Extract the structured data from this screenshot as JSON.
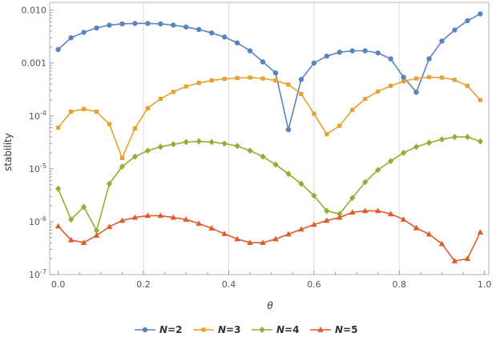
{
  "chart_data": {
    "type": "line",
    "xlabel": "θ",
    "ylabel": "stability",
    "xlim": [
      -0.02,
      1.01
    ],
    "ylim": [
      1e-07,
      0.014
    ],
    "yscale": "log",
    "x_ticks": [
      "0.0",
      "0.2",
      "0.4",
      "0.6",
      "0.8",
      "1.0"
    ],
    "y_ticks": [
      {
        "value": 0.01,
        "mant": "0.010",
        "exp": ""
      },
      {
        "value": 0.001,
        "mant": "0.001",
        "exp": ""
      },
      {
        "value": 0.0001,
        "mant": "10",
        "exp": "-4"
      },
      {
        "value": 1e-05,
        "mant": "10",
        "exp": "-5"
      },
      {
        "value": 1e-06,
        "mant": "10",
        "exp": "-6"
      },
      {
        "value": 1e-07,
        "mant": "10",
        "exp": "-7"
      }
    ],
    "vertical_gridlines": [
      0.2,
      0.4,
      0.6,
      0.8
    ],
    "legend_position": "bottom",
    "x": [
      0.0,
      0.03,
      0.06,
      0.09,
      0.12,
      0.15,
      0.18,
      0.21,
      0.24,
      0.27,
      0.3,
      0.33,
      0.36,
      0.39,
      0.42,
      0.45,
      0.48,
      0.51,
      0.54,
      0.57,
      0.6,
      0.63,
      0.66,
      0.69,
      0.72,
      0.75,
      0.78,
      0.81,
      0.84,
      0.87,
      0.9,
      0.93,
      0.96,
      0.99
    ],
    "series": [
      {
        "name": "N=2",
        "legend_symbol": "N",
        "legend_value": "=2",
        "color": "#5A84BE",
        "marker": "circle",
        "values": [
          0.0018,
          0.003,
          0.0038,
          0.0046,
          0.0052,
          0.0055,
          0.0056,
          0.0056,
          0.0055,
          0.0052,
          0.0048,
          0.0043,
          0.0037,
          0.0031,
          0.0024,
          0.0017,
          0.00105,
          0.00065,
          5.5e-05,
          0.00049,
          0.001,
          0.00135,
          0.0016,
          0.0017,
          0.0017,
          0.00155,
          0.0012,
          0.00054,
          0.00028,
          0.0012,
          0.0026,
          0.0042,
          0.0063,
          0.0085
        ]
      },
      {
        "name": "N=3",
        "legend_symbol": "N",
        "legend_value": "=3",
        "color": "#E8A02E",
        "marker": "square",
        "values": [
          6e-05,
          0.00012,
          0.000135,
          0.00012,
          7e-05,
          1.6e-05,
          5.8e-05,
          0.00014,
          0.00021,
          0.000285,
          0.00036,
          0.00042,
          0.00047,
          0.0005,
          0.00052,
          0.00053,
          0.00051,
          0.00047,
          0.00039,
          0.00026,
          0.00011,
          4.5e-05,
          6.5e-05,
          0.00013,
          0.00021,
          0.00029,
          0.00037,
          0.00045,
          0.00051,
          0.00054,
          0.00053,
          0.00048,
          0.00037,
          0.0002
        ]
      },
      {
        "name": "N=4",
        "legend_symbol": "N",
        "legend_value": "=4",
        "color": "#8FB031",
        "marker": "diamond",
        "values": [
          4.2e-06,
          1.1e-06,
          1.9e-06,
          6.8e-07,
          5.2e-06,
          1.1e-05,
          1.7e-05,
          2.2e-05,
          2.6e-05,
          2.9e-05,
          3.2e-05,
          3.3e-05,
          3.2e-05,
          3e-05,
          2.7e-05,
          2.2e-05,
          1.7e-05,
          1.2e-05,
          8e-06,
          5.2e-06,
          3.1e-06,
          1.6e-06,
          1.4e-06,
          2.8e-06,
          5.6e-06,
          9.5e-06,
          1.4e-05,
          2e-05,
          2.6e-05,
          3.1e-05,
          3.6e-05,
          4e-05,
          4e-05,
          3.3e-05
        ]
      },
      {
        "name": "N=5",
        "legend_symbol": "N",
        "legend_value": "=5",
        "color": "#E05A2B",
        "marker": "triangle",
        "values": [
          8.2e-07,
          4.5e-07,
          4e-07,
          5.5e-07,
          8e-07,
          1.05e-06,
          1.2e-06,
          1.3e-06,
          1.3e-06,
          1.2e-06,
          1.1e-06,
          9.2e-07,
          7.5e-07,
          5.9e-07,
          4.7e-07,
          4e-07,
          4e-07,
          4.7e-07,
          5.8e-07,
          7.2e-07,
          8.8e-07,
          1.05e-06,
          1.2e-06,
          1.5e-06,
          1.6e-06,
          1.6e-06,
          1.4e-06,
          1.1e-06,
          7.6e-07,
          5.8e-07,
          3.8e-07,
          1.8e-07,
          2e-07,
          6.3e-07
        ]
      }
    ]
  }
}
